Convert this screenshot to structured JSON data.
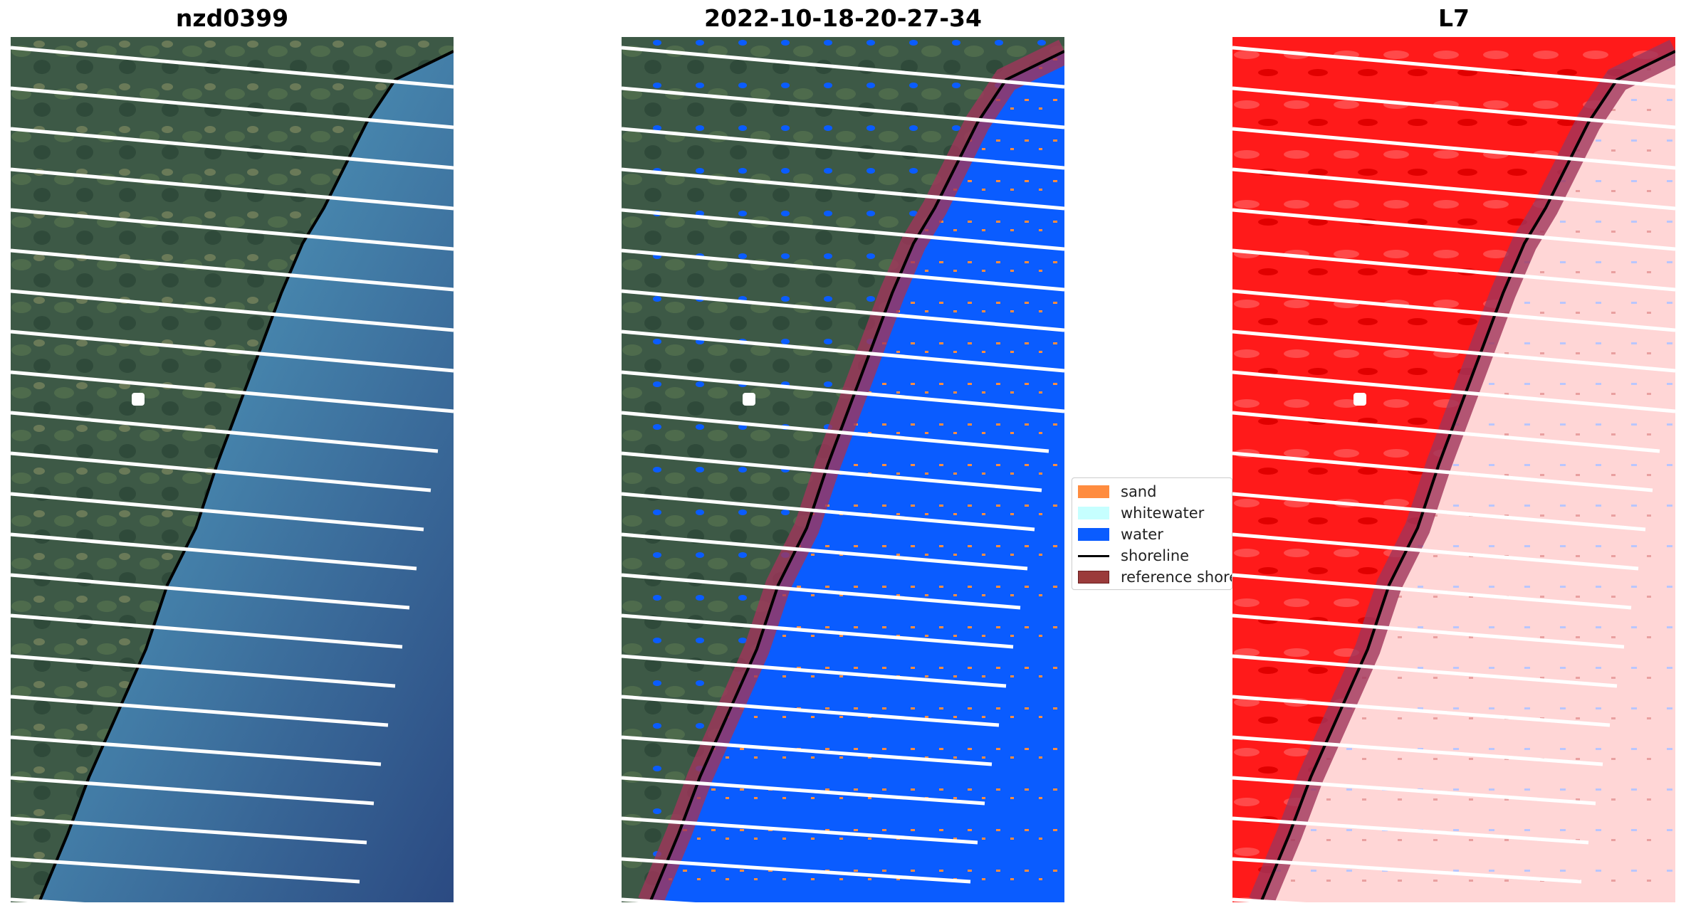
{
  "panels": [
    {
      "title": "nzd0399",
      "image": "true-color satellite image (RGB)"
    },
    {
      "title": "2022-10-18-20-27-34",
      "image": "classified image overlay"
    },
    {
      "title": "L7",
      "image": "water index image"
    }
  ],
  "legend": {
    "items": [
      {
        "label": "sand",
        "color": "#ff8c3f",
        "kind": "patch"
      },
      {
        "label": "whitewater",
        "color": "#c6ffff",
        "kind": "patch"
      },
      {
        "label": "water",
        "color": "#0055ff",
        "kind": "patch"
      },
      {
        "label": "shoreline",
        "color": "#000000",
        "kind": "line"
      },
      {
        "label": "reference shoreline buffer",
        "color": "#9b3b3b",
        "kind": "patch"
      }
    ]
  },
  "colors": {
    "land": "#3f5b46",
    "land_dark": "#2d4637",
    "sea_shallow": "#5fa8c3",
    "sea_deep": "#2e4f85",
    "classified_water": "#0a5cff",
    "index_land": "#ff1a1a",
    "index_water": "#ffd6d6",
    "buffer": "#a0345a",
    "stripe_gap": "#ffffff"
  }
}
